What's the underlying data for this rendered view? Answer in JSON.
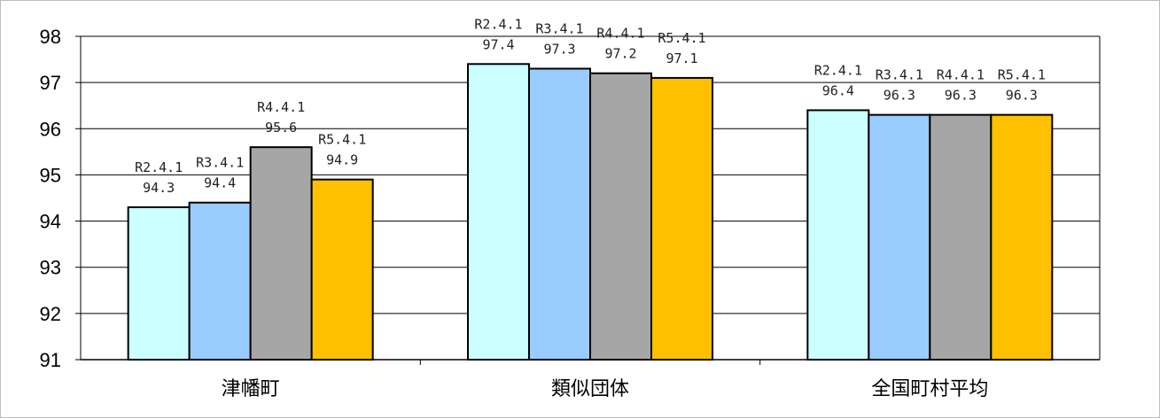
{
  "chart_data": {
    "type": "bar",
    "categories": [
      "津幡町",
      "類似団体",
      "全国町村平均"
    ],
    "series": [
      {
        "name": "R2.4.1",
        "values": [
          94.3,
          97.4,
          96.4
        ],
        "color": "#ccffff"
      },
      {
        "name": "R3.4.1",
        "values": [
          94.4,
          97.3,
          96.3
        ],
        "color": "#99ccff"
      },
      {
        "name": "R4.4.1",
        "values": [
          95.6,
          97.2,
          96.3
        ],
        "color": "#a6a6a6"
      },
      {
        "name": "R5.4.1",
        "values": [
          94.9,
          97.1,
          96.3
        ],
        "color": "#ffc000"
      }
    ],
    "value_labels": [
      [
        "94.3",
        "97.4",
        "96.4"
      ],
      [
        "94.4",
        "97.3",
        "96.3"
      ],
      [
        "95.6",
        "97.2",
        "96.3"
      ],
      [
        "94.9",
        "97.1",
        "96.3"
      ]
    ],
    "ylim": [
      91,
      98
    ],
    "yticks": [
      "91",
      "92",
      "93",
      "94",
      "95",
      "96",
      "97",
      "98"
    ],
    "title": "",
    "xlabel": "",
    "ylabel": "",
    "grid": true,
    "legend": "none"
  }
}
